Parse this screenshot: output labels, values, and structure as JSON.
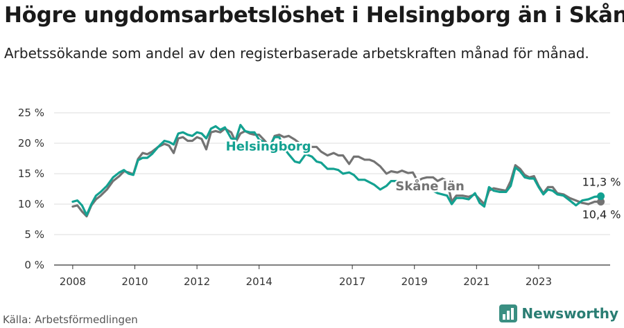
{
  "title": "Högre ungdomsarbetslöshet i Helsingborg än i Skåne",
  "subtitle": "Arbetssökande som andel av den registerbaserade arbetskraften månad för månad.",
  "source": "Källa: Arbetsförmedlingen",
  "brand": {
    "name": "Newsworthy",
    "icon": "bar-chart-icon"
  },
  "colors": {
    "helsingborg": "#13a191",
    "skane": "#737373",
    "grid": "#dcdcdc",
    "axis": "#333333"
  },
  "chart_data": {
    "type": "line",
    "title": "Högre ungdomsarbetslöshet i Helsingborg än i Skåne",
    "xlabel": "",
    "ylabel": "",
    "xlim": [
      2007.4,
      2025.3
    ],
    "ylim": [
      0,
      25
    ],
    "y_ticks": [
      0,
      5,
      10,
      15,
      20,
      25
    ],
    "y_tick_labels": [
      "0 %",
      "5 %",
      "10 %",
      "15 %",
      "20 %",
      "25 %"
    ],
    "x_ticks": [
      2008,
      2010,
      2012,
      2014,
      2017,
      2019,
      2021,
      2023
    ],
    "x_tick_labels": [
      "2008",
      "2010",
      "2012",
      "2014",
      "2017",
      "2019",
      "2021",
      "2023"
    ],
    "grid": true,
    "series": [
      {
        "name": "Skåne län",
        "color": "#737373",
        "points": [
          [
            2008.0,
            9.6
          ],
          [
            2008.15,
            9.8
          ],
          [
            2008.3,
            8.8
          ],
          [
            2008.45,
            8.0
          ],
          [
            2008.6,
            9.8
          ],
          [
            2008.75,
            10.8
          ],
          [
            2008.9,
            11.4
          ],
          [
            2009.1,
            12.4
          ],
          [
            2009.3,
            13.8
          ],
          [
            2009.5,
            14.6
          ],
          [
            2009.65,
            15.4
          ],
          [
            2009.8,
            15.2
          ],
          [
            2009.95,
            14.9
          ],
          [
            2010.1,
            17.4
          ],
          [
            2010.25,
            18.4
          ],
          [
            2010.4,
            18.2
          ],
          [
            2010.55,
            18.6
          ],
          [
            2010.75,
            19.4
          ],
          [
            2010.95,
            19.9
          ],
          [
            2011.1,
            19.6
          ],
          [
            2011.25,
            18.4
          ],
          [
            2011.4,
            20.8
          ],
          [
            2011.55,
            21.0
          ],
          [
            2011.7,
            20.4
          ],
          [
            2011.85,
            20.4
          ],
          [
            2012.0,
            21.0
          ],
          [
            2012.15,
            20.7
          ],
          [
            2012.3,
            19.0
          ],
          [
            2012.45,
            21.8
          ],
          [
            2012.6,
            22.0
          ],
          [
            2012.75,
            21.8
          ],
          [
            2012.9,
            22.4
          ],
          [
            2013.1,
            21.8
          ],
          [
            2013.25,
            20.2
          ],
          [
            2013.4,
            21.6
          ],
          [
            2013.55,
            22.0
          ],
          [
            2013.7,
            21.6
          ],
          [
            2013.85,
            21.4
          ],
          [
            2014.0,
            21.4
          ],
          [
            2014.15,
            20.6
          ],
          [
            2014.35,
            19.4
          ],
          [
            2014.5,
            21.2
          ],
          [
            2014.65,
            21.4
          ],
          [
            2014.8,
            21.0
          ],
          [
            2014.95,
            21.2
          ],
          [
            2015.15,
            20.6
          ],
          [
            2015.3,
            20.0
          ],
          [
            2015.5,
            19.8
          ],
          [
            2015.7,
            19.4
          ],
          [
            2015.85,
            19.4
          ],
          [
            2016.0,
            18.6
          ],
          [
            2016.2,
            18.0
          ],
          [
            2016.4,
            18.4
          ],
          [
            2016.55,
            18.0
          ],
          [
            2016.7,
            18.0
          ],
          [
            2016.9,
            16.6
          ],
          [
            2017.05,
            17.8
          ],
          [
            2017.2,
            17.8
          ],
          [
            2017.4,
            17.3
          ],
          [
            2017.55,
            17.3
          ],
          [
            2017.7,
            17.0
          ],
          [
            2017.9,
            16.2
          ],
          [
            2018.1,
            15.0
          ],
          [
            2018.25,
            15.4
          ],
          [
            2018.45,
            15.2
          ],
          [
            2018.6,
            15.5
          ],
          [
            2018.8,
            15.1
          ],
          [
            2018.95,
            15.2
          ],
          [
            2019.1,
            13.8
          ],
          [
            2019.25,
            14.2
          ],
          [
            2019.4,
            14.4
          ],
          [
            2019.6,
            14.4
          ],
          [
            2019.75,
            13.8
          ],
          [
            2019.9,
            14.2
          ],
          [
            2020.05,
            13.8
          ],
          [
            2020.2,
            10.4
          ],
          [
            2020.35,
            11.4
          ],
          [
            2020.55,
            11.4
          ],
          [
            2020.75,
            11.2
          ],
          [
            2020.95,
            11.6
          ],
          [
            2021.1,
            10.8
          ],
          [
            2021.25,
            10.0
          ],
          [
            2021.4,
            12.2
          ],
          [
            2021.55,
            12.6
          ],
          [
            2021.75,
            12.4
          ],
          [
            2021.95,
            12.2
          ],
          [
            2022.1,
            13.8
          ],
          [
            2022.25,
            16.4
          ],
          [
            2022.4,
            15.8
          ],
          [
            2022.55,
            14.8
          ],
          [
            2022.7,
            14.4
          ],
          [
            2022.85,
            14.6
          ],
          [
            2023.0,
            13.0
          ],
          [
            2023.15,
            11.8
          ],
          [
            2023.3,
            12.8
          ],
          [
            2023.45,
            12.8
          ],
          [
            2023.6,
            11.8
          ],
          [
            2023.8,
            11.6
          ],
          [
            2024.0,
            11.0
          ],
          [
            2024.2,
            10.6
          ],
          [
            2024.4,
            10.2
          ],
          [
            2024.6,
            10.0
          ],
          [
            2024.8,
            10.4
          ],
          [
            2025.0,
            10.4
          ]
        ],
        "end_label": "10,4 %"
      },
      {
        "name": "Helsingborg",
        "color": "#13a191",
        "points": [
          [
            2008.0,
            10.4
          ],
          [
            2008.15,
            10.6
          ],
          [
            2008.3,
            9.8
          ],
          [
            2008.45,
            8.2
          ],
          [
            2008.6,
            10.0
          ],
          [
            2008.75,
            11.4
          ],
          [
            2008.9,
            12.0
          ],
          [
            2009.1,
            13.0
          ],
          [
            2009.3,
            14.4
          ],
          [
            2009.5,
            15.2
          ],
          [
            2009.65,
            15.6
          ],
          [
            2009.8,
            15.0
          ],
          [
            2009.95,
            14.8
          ],
          [
            2010.1,
            17.2
          ],
          [
            2010.25,
            17.6
          ],
          [
            2010.4,
            17.6
          ],
          [
            2010.55,
            18.2
          ],
          [
            2010.75,
            19.4
          ],
          [
            2010.95,
            20.4
          ],
          [
            2011.1,
            20.2
          ],
          [
            2011.25,
            19.8
          ],
          [
            2011.4,
            21.6
          ],
          [
            2011.55,
            21.8
          ],
          [
            2011.7,
            21.4
          ],
          [
            2011.85,
            21.2
          ],
          [
            2012.0,
            21.8
          ],
          [
            2012.15,
            21.6
          ],
          [
            2012.3,
            20.8
          ],
          [
            2012.45,
            22.4
          ],
          [
            2012.6,
            22.8
          ],
          [
            2012.75,
            22.2
          ],
          [
            2012.9,
            22.6
          ],
          [
            2013.1,
            20.8
          ],
          [
            2013.25,
            20.6
          ],
          [
            2013.4,
            23.0
          ],
          [
            2013.55,
            22.0
          ],
          [
            2013.7,
            21.8
          ],
          [
            2013.85,
            21.8
          ],
          [
            2014.0,
            20.6
          ],
          [
            2014.15,
            20.2
          ],
          [
            2014.35,
            19.6
          ],
          [
            2014.5,
            21.0
          ],
          [
            2014.65,
            21.0
          ],
          [
            2014.8,
            19.2
          ],
          [
            2014.95,
            18.2
          ],
          [
            2015.15,
            17.0
          ],
          [
            2015.3,
            16.8
          ],
          [
            2015.5,
            18.2
          ],
          [
            2015.7,
            17.8
          ],
          [
            2015.85,
            17.0
          ],
          [
            2016.0,
            16.8
          ],
          [
            2016.2,
            15.8
          ],
          [
            2016.4,
            15.8
          ],
          [
            2016.55,
            15.6
          ],
          [
            2016.7,
            15.0
          ],
          [
            2016.9,
            15.2
          ],
          [
            2017.05,
            14.8
          ],
          [
            2017.2,
            14.0
          ],
          [
            2017.4,
            14.0
          ],
          [
            2017.55,
            13.6
          ],
          [
            2017.7,
            13.2
          ],
          [
            2017.9,
            12.4
          ],
          [
            2018.1,
            13.0
          ],
          [
            2018.25,
            13.8
          ],
          [
            2018.45,
            13.8
          ],
          [
            2018.6,
            13.0
          ],
          [
            2018.8,
            12.8
          ],
          [
            2018.95,
            12.8
          ],
          [
            2019.1,
            12.2
          ],
          [
            2019.25,
            12.6
          ],
          [
            2019.4,
            12.8
          ],
          [
            2019.6,
            12.2
          ],
          [
            2019.75,
            11.8
          ],
          [
            2019.9,
            11.6
          ],
          [
            2020.05,
            11.4
          ],
          [
            2020.2,
            10.0
          ],
          [
            2020.35,
            11.0
          ],
          [
            2020.55,
            11.0
          ],
          [
            2020.75,
            10.8
          ],
          [
            2020.95,
            11.8
          ],
          [
            2021.1,
            10.2
          ],
          [
            2021.25,
            9.6
          ],
          [
            2021.4,
            12.8
          ],
          [
            2021.55,
            12.2
          ],
          [
            2021.75,
            12.0
          ],
          [
            2021.95,
            12.0
          ],
          [
            2022.1,
            13.0
          ],
          [
            2022.25,
            16.0
          ],
          [
            2022.4,
            15.4
          ],
          [
            2022.55,
            14.4
          ],
          [
            2022.7,
            14.2
          ],
          [
            2022.85,
            14.2
          ],
          [
            2023.0,
            12.8
          ],
          [
            2023.15,
            11.6
          ],
          [
            2023.3,
            12.4
          ],
          [
            2023.45,
            12.2
          ],
          [
            2023.6,
            11.6
          ],
          [
            2023.8,
            11.4
          ],
          [
            2024.0,
            10.6
          ],
          [
            2024.2,
            9.8
          ],
          [
            2024.4,
            10.6
          ],
          [
            2024.6,
            10.8
          ],
          [
            2024.8,
            11.2
          ],
          [
            2025.0,
            11.3
          ]
        ],
        "end_label": "11,3 %"
      }
    ],
    "annotations": [
      {
        "series": "Helsingborg",
        "text": "Helsingborg",
        "x": 2014.3,
        "y": 18.8
      },
      {
        "series": "Skåne län",
        "text": "Skåne län",
        "x": 2019.5,
        "y": 12.3
      }
    ]
  }
}
